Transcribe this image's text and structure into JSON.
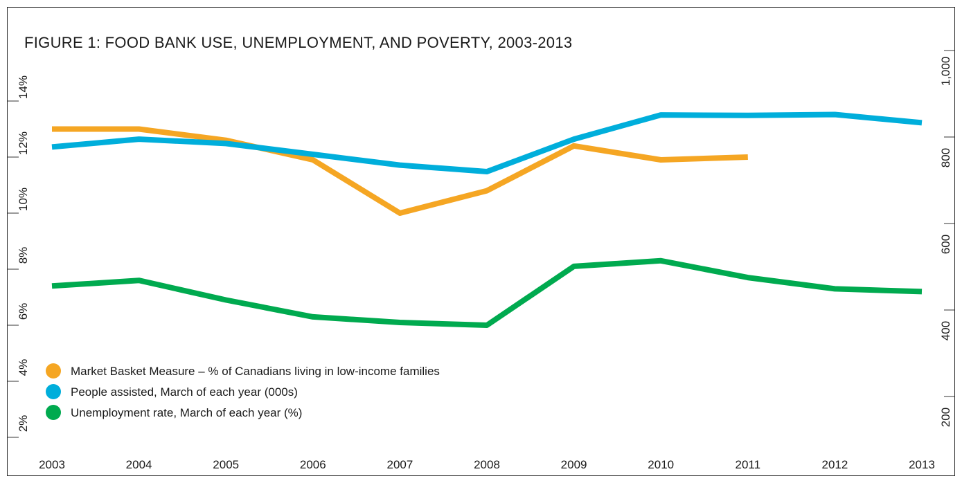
{
  "chart_data": {
    "type": "line",
    "title": "FIGURE 1: FOOD BANK USE, UNEMPLOYMENT, AND POVERTY, 2003-2013",
    "categories": [
      "2003",
      "2004",
      "2005",
      "2006",
      "2007",
      "2008",
      "2009",
      "2010",
      "2011",
      "2012",
      "2013"
    ],
    "y_left": {
      "ticks": [
        "2%",
        "4%",
        "6%",
        "8%",
        "10%",
        "12%",
        "14%"
      ],
      "tick_values": [
        2,
        4,
        6,
        8,
        10,
        12,
        14
      ]
    },
    "y_right": {
      "ticks": [
        "200",
        "400",
        "600",
        "800",
        "1,000"
      ],
      "tick_values": [
        200,
        400,
        600,
        800,
        1000
      ]
    },
    "series": [
      {
        "name": "Market Basket Measure – % of Canadians living in low-income families",
        "color": "#F5A623",
        "axis": "left",
        "values": [
          13.0,
          13.0,
          12.6,
          11.9,
          10.0,
          10.8,
          12.4,
          11.9,
          12.0,
          null,
          null
        ]
      },
      {
        "name": "People assisted, March of each year (000s)",
        "color": "#00AEDB",
        "axis": "right",
        "values": [
          777,
          795,
          785,
          760,
          735,
          720,
          795,
          851,
          850,
          852,
          833
        ]
      },
      {
        "name": "Unemployment rate, March of each year (%)",
        "color": "#00AA4F",
        "axis": "left",
        "values": [
          7.4,
          7.6,
          6.9,
          6.3,
          6.1,
          6.0,
          8.1,
          8.3,
          7.7,
          7.3,
          7.2
        ]
      }
    ],
    "legend_position": "bottom-left",
    "grid": false
  }
}
